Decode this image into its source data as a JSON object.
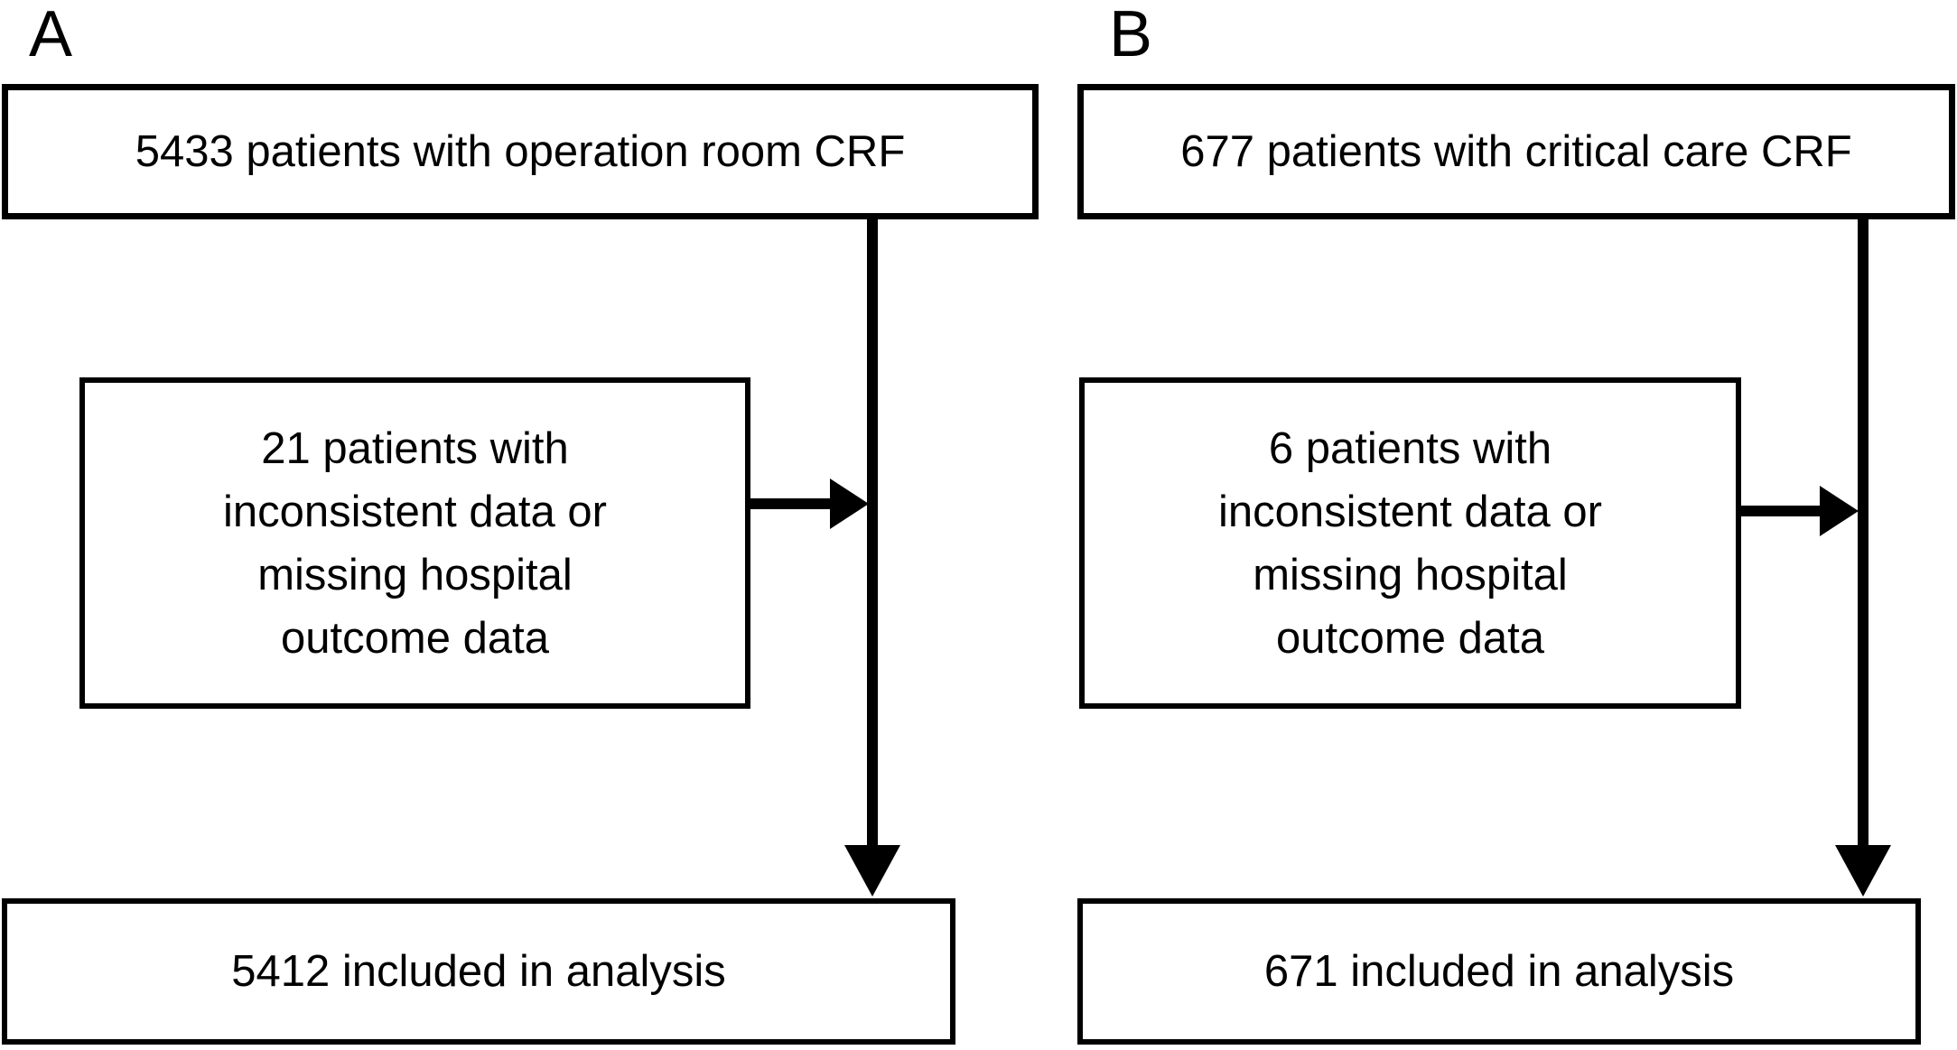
{
  "figure": {
    "type": "patient-flow-diagram",
    "colors": {
      "background": "#ffffff",
      "line": "#000000",
      "text": "#000000"
    },
    "panels": [
      {
        "label": "A",
        "source_box": {
          "text": "5433 patients with operation room CRF"
        },
        "exclusion_box": {
          "lines": [
            "21 patients with",
            "inconsistent data or",
            "missing hospital",
            "outcome data"
          ]
        },
        "included_box": {
          "text": "5412 included in analysis"
        }
      },
      {
        "label": "B",
        "source_box": {
          "text": "677 patients with critical care CRF"
        },
        "exclusion_box": {
          "lines": [
            "6 patients with",
            "inconsistent data or",
            "missing hospital",
            "outcome data"
          ]
        },
        "included_box": {
          "text": "671 included in analysis"
        }
      }
    ]
  }
}
